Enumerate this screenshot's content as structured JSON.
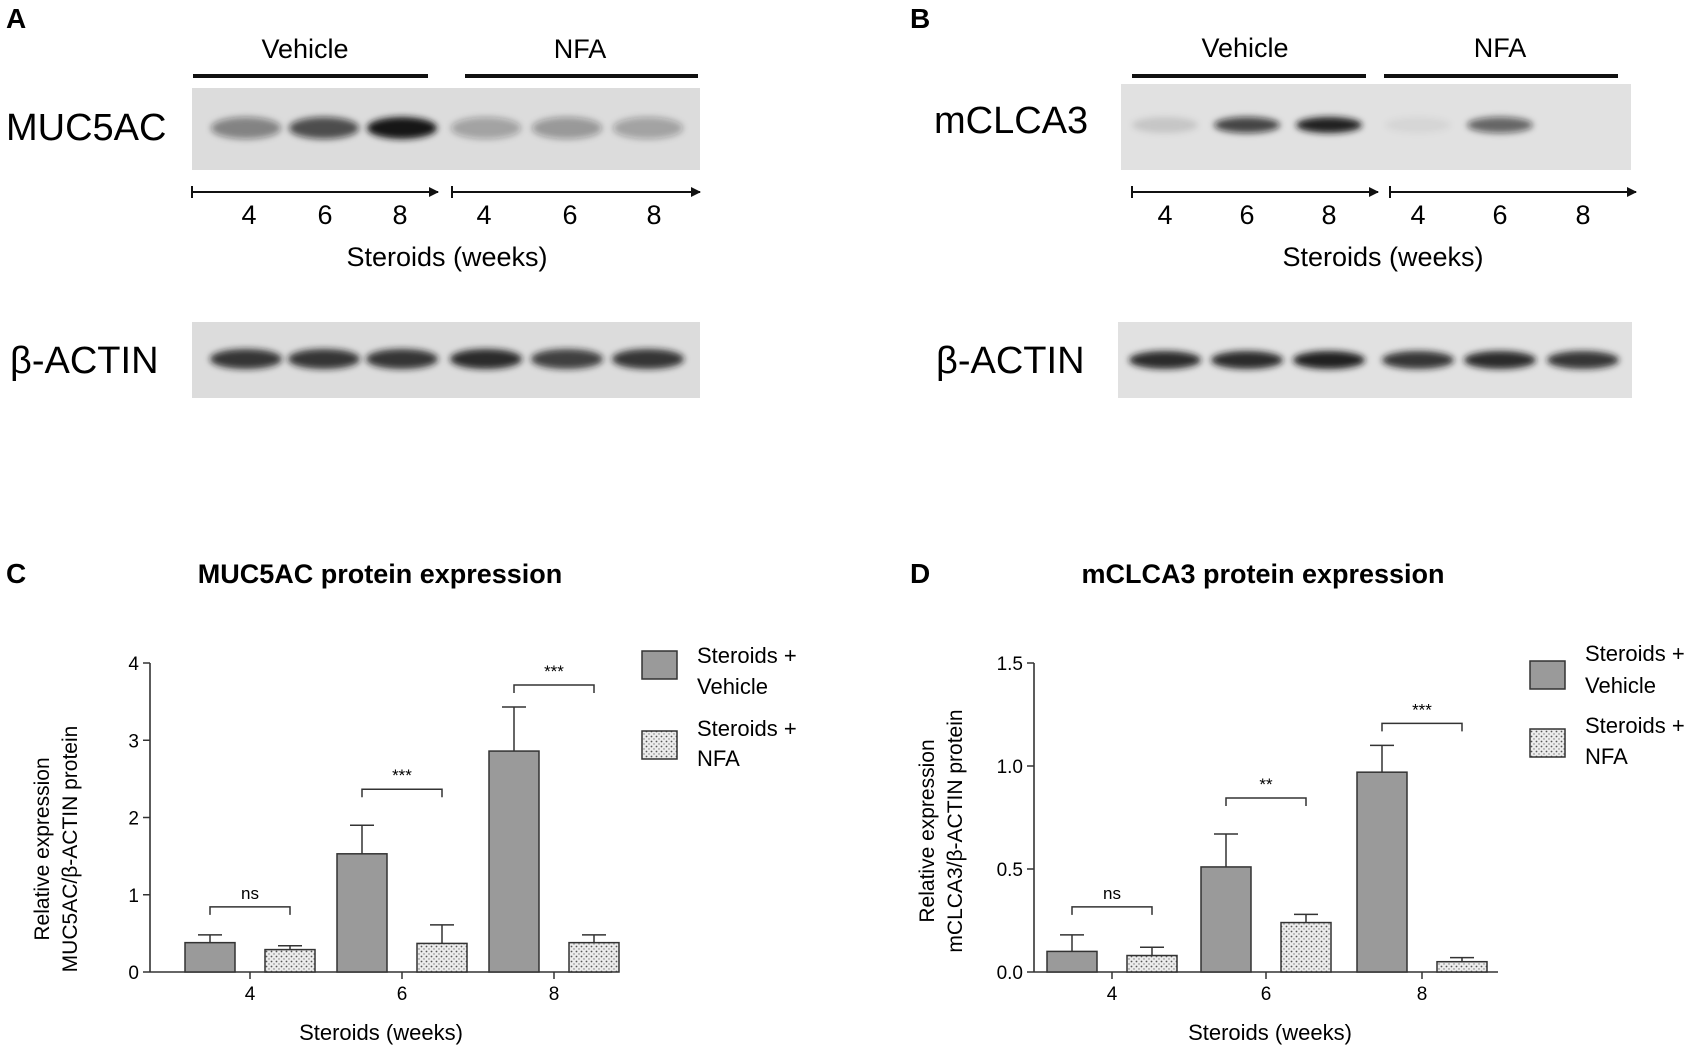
{
  "panels": {
    "A": {
      "letter": "A",
      "groups": [
        "Vehicle",
        "NFA"
      ],
      "protein": "MUC5AC",
      "loading": "β-ACTIN",
      "lane_weeks": [
        "4",
        "6",
        "8",
        "4",
        "6",
        "8"
      ],
      "axis_title": "Steroids (weeks)",
      "band_intensity": [
        0.45,
        0.7,
        1.0,
        0.3,
        0.35,
        0.3
      ],
      "actin_intensity": [
        0.85,
        0.85,
        0.85,
        0.9,
        0.8,
        0.85
      ]
    },
    "B": {
      "letter": "B",
      "groups": [
        "Vehicle",
        "NFA"
      ],
      "protein": "mCLCA3",
      "loading": "β-ACTIN",
      "lane_weeks": [
        "4",
        "6",
        "8",
        "4",
        "6",
        "8"
      ],
      "axis_title": "Steroids (weeks)",
      "band_intensity": [
        0.12,
        0.75,
        0.95,
        0.05,
        0.6,
        0.0
      ],
      "actin_intensity": [
        0.9,
        0.9,
        0.95,
        0.85,
        0.9,
        0.85
      ]
    }
  },
  "chart_data": [
    {
      "panel": "C",
      "type": "bar",
      "title": "MUC5AC protein expression",
      "xlabel": "Steroids (weeks)",
      "ylabel": [
        "Relative expression",
        "MUC5AC/β-ACTIN protein"
      ],
      "categories": [
        "4",
        "6",
        "8"
      ],
      "ylim": [
        0,
        4
      ],
      "yticks": [
        0,
        1,
        2,
        3,
        4
      ],
      "ytick_labels": [
        "0",
        "1",
        "2",
        "3",
        "4"
      ],
      "series": [
        {
          "name": "Steroids + Vehicle",
          "legend_lines": [
            "Steroids +",
            "Vehicle"
          ],
          "values": [
            0.38,
            1.53,
            2.86
          ],
          "errors": [
            0.1,
            0.37,
            0.57
          ]
        },
        {
          "name": "Steroids + NFA",
          "legend_lines": [
            "Steroids +",
            "NFA"
          ],
          "values": [
            0.29,
            0.37,
            0.38
          ],
          "errors": [
            0.05,
            0.24,
            0.1
          ]
        }
      ],
      "significance": [
        "ns",
        "***",
        "***"
      ],
      "legend_position": "right",
      "grid": false
    },
    {
      "panel": "D",
      "type": "bar",
      "title": "mCLCA3 protein expression",
      "xlabel": "Steroids (weeks)",
      "ylabel": [
        "Relative expression",
        "mCLCA3/β-ACTIN protein"
      ],
      "categories": [
        "4",
        "6",
        "8"
      ],
      "ylim": [
        0,
        1.5
      ],
      "yticks": [
        0,
        0.5,
        1.0,
        1.5
      ],
      "ytick_labels": [
        "0.0",
        "0.5",
        "1.0",
        "1.5"
      ],
      "series": [
        {
          "name": "Steroids + Vehicle",
          "legend_lines": [
            "Steroids +",
            "Vehicle"
          ],
          "values": [
            0.1,
            0.51,
            0.97
          ],
          "errors": [
            0.08,
            0.16,
            0.13
          ]
        },
        {
          "name": "Steroids + NFA",
          "legend_lines": [
            "Steroids +",
            "NFA"
          ],
          "values": [
            0.08,
            0.24,
            0.05
          ],
          "errors": [
            0.04,
            0.04,
            0.02
          ]
        }
      ],
      "significance": [
        "ns",
        "**",
        "***"
      ],
      "legend_position": "right",
      "grid": false
    }
  ],
  "colors": {
    "vehicle_bar": "#9a9a9a",
    "nfa_bar": "#e6e6e6",
    "axis": "#333333",
    "blot_bg_a": "#dcdcdc",
    "blot_bg_b": "#e1e1e1",
    "band": "#151515"
  }
}
